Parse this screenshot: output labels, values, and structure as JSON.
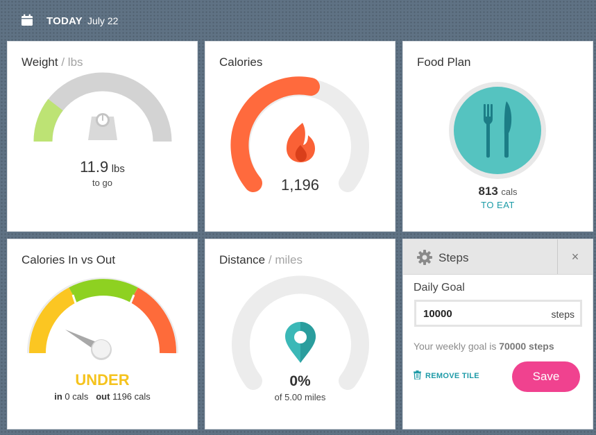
{
  "header": {
    "today_label": "TODAY",
    "date": "July 22",
    "icon": "calendar-icon"
  },
  "tiles": {
    "weight": {
      "title": "Weight",
      "unit": "/ lbs",
      "value": "11.9",
      "value_unit": "lbs",
      "sub": "to go",
      "icon": "scale-icon",
      "progress_fraction": 0.2,
      "colors": {
        "progress": "#bde374",
        "track": "#d3d3d3"
      }
    },
    "calories": {
      "title": "Calories",
      "value": "1,196",
      "icon": "flame-icon",
      "progress_fraction": 0.5,
      "colors": {
        "progress": "#ff6a3d",
        "track": "#ececec"
      }
    },
    "food_plan": {
      "title": "Food Plan",
      "value": "813",
      "value_unit": "cals",
      "sub": "TO EAT",
      "icon": "fork-knife-icon",
      "colors": {
        "plate": "#55c3c0",
        "accent": "#1a9ba6"
      }
    },
    "calories_in_out": {
      "title": "Calories In vs Out",
      "status": "UNDER",
      "in_label": "in",
      "in_value": "0 cals",
      "out_label": "out",
      "out_value": "1196 cals",
      "icon": "gauge-needle-icon",
      "colors": {
        "low": "#fbc622",
        "mid": "#8ed121",
        "high": "#fe6b3a",
        "status": "#f5c31e"
      }
    },
    "distance": {
      "title": "Distance",
      "unit": "/ miles",
      "value": "0%",
      "sub": "of 5.00 miles",
      "icon": "map-pin-icon",
      "progress_fraction": 0,
      "colors": {
        "pin": "#3bb8b7",
        "track": "#ececec"
      }
    },
    "steps": {
      "title": "Steps",
      "close_label": "×",
      "goal_label": "Daily Goal",
      "goal_value": "10000",
      "goal_unit": "steps",
      "weekly_prefix": "Your weekly goal is",
      "weekly_value": "70000 steps",
      "remove_label": "REMOVE TILE",
      "save_label": "Save",
      "colors": {
        "save": "#f0428f",
        "remove": "#1e9aa7"
      }
    }
  }
}
